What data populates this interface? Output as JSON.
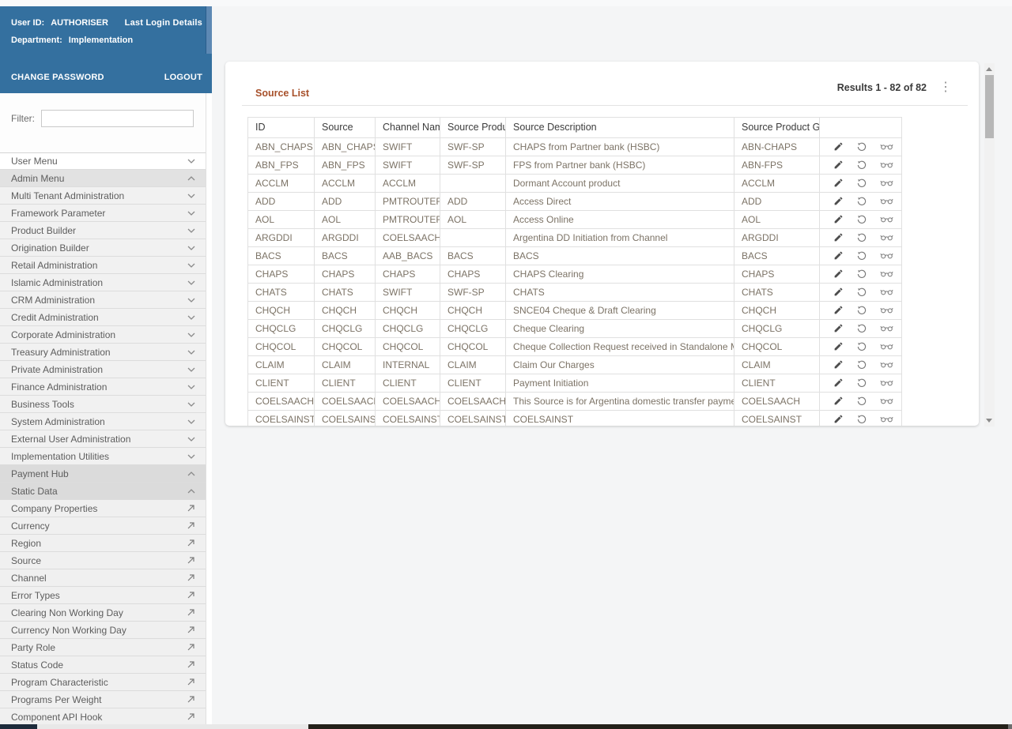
{
  "colors": {
    "sidebar_blue": "#34709f",
    "title_accent": "#a7502a",
    "table_text": "#7c7366"
  },
  "sidebar": {
    "user_id_label": "User ID:",
    "user_id_value": "AUTHORISER",
    "last_login_link": "Last Login Details",
    "department_label": "Department:",
    "department_value": "Implementation",
    "change_password_link": "CHANGE PASSWORD",
    "logout_link": "LOGOUT",
    "filter_label": "Filter:",
    "filter_value": "",
    "menu": [
      {
        "label": "User Menu",
        "variant": "plain",
        "icon": "chevron-down"
      },
      {
        "label": "Admin Menu",
        "variant": "selected",
        "icon": "chevron-up"
      },
      {
        "label": "Multi Tenant Administration",
        "variant": "group",
        "icon": "chevron-down"
      },
      {
        "label": "Framework Parameter",
        "variant": "group",
        "icon": "chevron-down"
      },
      {
        "label": "Product Builder",
        "variant": "group",
        "icon": "chevron-down"
      },
      {
        "label": "Origination Builder",
        "variant": "group",
        "icon": "chevron-down"
      },
      {
        "label": "Retail Administration",
        "variant": "group",
        "icon": "chevron-down"
      },
      {
        "label": "Islamic Administration",
        "variant": "group",
        "icon": "chevron-down"
      },
      {
        "label": "CRM Administration",
        "variant": "group",
        "icon": "chevron-down"
      },
      {
        "label": "Credit Administration",
        "variant": "group",
        "icon": "chevron-down"
      },
      {
        "label": "Corporate Administration",
        "variant": "group",
        "icon": "chevron-down"
      },
      {
        "label": "Treasury Administration",
        "variant": "group",
        "icon": "chevron-down"
      },
      {
        "label": "Private Administration",
        "variant": "group",
        "icon": "chevron-down"
      },
      {
        "label": "Finance Administration",
        "variant": "group",
        "icon": "chevron-down"
      },
      {
        "label": "Business Tools",
        "variant": "group",
        "icon": "chevron-down"
      },
      {
        "label": "System Administration",
        "variant": "group",
        "icon": "chevron-down"
      },
      {
        "label": "External User Administration",
        "variant": "group",
        "icon": "chevron-down"
      },
      {
        "label": "Implementation Utilities",
        "variant": "group",
        "icon": "chevron-down"
      },
      {
        "label": "Payment Hub",
        "variant": "open",
        "icon": "chevron-up"
      },
      {
        "label": "Static Data",
        "variant": "open",
        "icon": "chevron-up"
      },
      {
        "label": "Company Properties",
        "variant": "leaf",
        "icon": "launch"
      },
      {
        "label": "Currency",
        "variant": "leaf",
        "icon": "launch"
      },
      {
        "label": "Region",
        "variant": "leaf",
        "icon": "launch"
      },
      {
        "label": "Source",
        "variant": "leaf",
        "icon": "launch"
      },
      {
        "label": "Channel",
        "variant": "leaf",
        "icon": "launch"
      },
      {
        "label": "Error Types",
        "variant": "leaf",
        "icon": "launch"
      },
      {
        "label": "Clearing Non Working Day",
        "variant": "leaf",
        "icon": "launch"
      },
      {
        "label": "Currency Non Working Day",
        "variant": "leaf",
        "icon": "launch"
      },
      {
        "label": "Party Role",
        "variant": "leaf",
        "icon": "launch"
      },
      {
        "label": "Status Code",
        "variant": "leaf",
        "icon": "launch"
      },
      {
        "label": "Program Characteristic",
        "variant": "leaf",
        "icon": "launch"
      },
      {
        "label": "Programs Per Weight",
        "variant": "leaf",
        "icon": "launch"
      },
      {
        "label": "Component API Hook",
        "variant": "leaf",
        "icon": "launch"
      }
    ]
  },
  "main": {
    "title": "Source List",
    "results_text": "Results 1 - 82 of 82",
    "row_actions": [
      "edit",
      "restore",
      "view"
    ],
    "table": {
      "columns": [
        "ID",
        "Source",
        "Channel Name",
        "Source Product",
        "Source Description",
        "Source Product Group",
        ""
      ],
      "rows": [
        [
          "ABN_CHAPS",
          "ABN_CHAPS",
          "SWIFT",
          "SWF-SP",
          "CHAPS from Partner bank (HSBC)",
          "ABN-CHAPS"
        ],
        [
          "ABN_FPS",
          "ABN_FPS",
          "SWIFT",
          "SWF-SP",
          "FPS from Partner bank (HSBC)",
          "ABN-FPS"
        ],
        [
          "ACCLM",
          "ACCLM",
          "ACCLM",
          "",
          "Dormant Account product",
          "ACCLM"
        ],
        [
          "ADD",
          "ADD",
          "PMTROUTER",
          "ADD",
          "Access Direct",
          "ADD"
        ],
        [
          "AOL",
          "AOL",
          "PMTROUTER",
          "AOL",
          "Access Online",
          "AOL"
        ],
        [
          "ARGDDI",
          "ARGDDI",
          "COELSAACH",
          "",
          "Argentina DD Initiation from Channel",
          "ARGDDI"
        ],
        [
          "BACS",
          "BACS",
          "AAB_BACS",
          "BACS",
          "BACS",
          "BACS"
        ],
        [
          "CHAPS",
          "CHAPS",
          "CHAPS",
          "CHAPS",
          "CHAPS Clearing",
          "CHAPS"
        ],
        [
          "CHATS",
          "CHATS",
          "SWIFT",
          "SWF-SP",
          "CHATS",
          "CHATS"
        ],
        [
          "CHQCH",
          "CHQCH",
          "CHQCH",
          "CHQCH",
          "SNCE04 Cheque & Draft Clearing",
          "CHQCH"
        ],
        [
          "CHQCLG",
          "CHQCLG",
          "CHQCLG",
          "CHQCLG",
          "Cheque Clearing",
          "CHQCLG"
        ],
        [
          "CHQCOL",
          "CHQCOL",
          "CHQCOL",
          "CHQCOL",
          "Cheque Collection Request received in Standalone Mode",
          "CHQCOL"
        ],
        [
          "CLAIM",
          "CLAIM",
          "INTERNAL",
          "CLAIM",
          "Claim Our Charges",
          "CLAIM"
        ],
        [
          "CLIENT",
          "CLIENT",
          "CLIENT",
          "CLIENT",
          "Payment Initiation",
          "CLIENT"
        ],
        [
          "COELSAACH",
          "COELSAACH",
          "COELSAACH",
          "COELSAACH",
          "This Source is for Argentina domestic transfer payments",
          "COELSAACH"
        ],
        [
          "COELSAINST",
          "COELSAINST",
          "COELSAINST",
          "COELSAINST",
          "COELSAINST",
          "COELSAINST"
        ]
      ]
    }
  }
}
